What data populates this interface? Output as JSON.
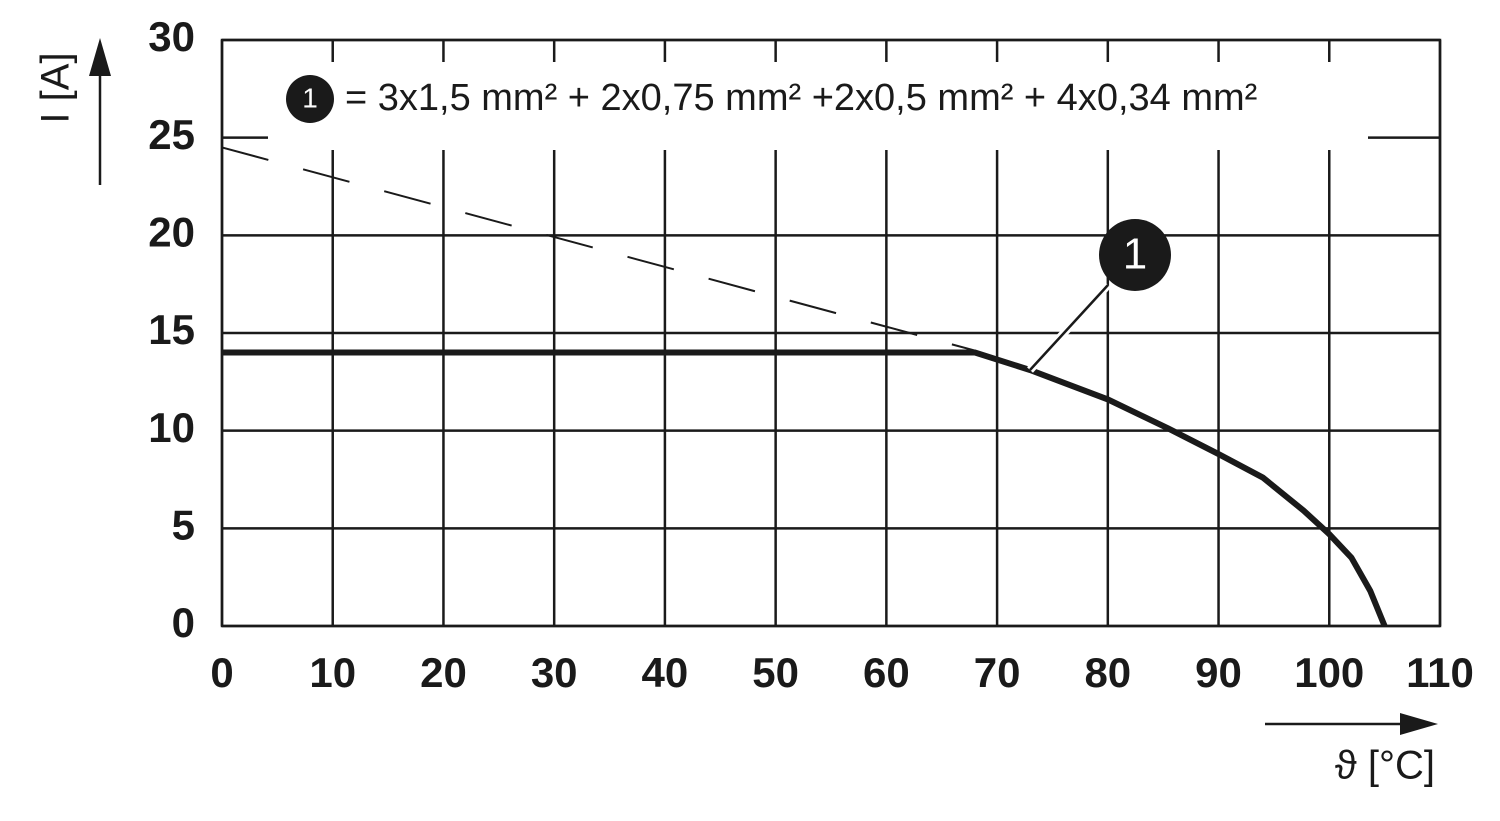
{
  "chart_data": {
    "type": "line",
    "xlabel": "ϑ [°C]",
    "ylabel": "I [A]",
    "xlim": [
      0,
      110
    ],
    "xticks": [
      0,
      10,
      20,
      30,
      40,
      50,
      60,
      70,
      80,
      90,
      100,
      110
    ],
    "ylim": [
      0,
      30
    ],
    "yticks": [
      0,
      5,
      10,
      15,
      20,
      25,
      30
    ],
    "grid": true,
    "series": [
      {
        "color": "#1a1a1a",
        "x": [
          0,
          68,
          73,
          80,
          85.5,
          90,
          94,
          97.7,
          100,
          102,
          103.7,
          105
        ],
        "values": [
          14,
          14,
          13.1,
          11.6,
          10.1,
          8.8,
          7.6,
          5.9,
          4.7,
          3.5,
          1.8,
          0
        ]
      },
      {
        "color": "#1a1a1a",
        "dashed": true,
        "x": [
          0,
          68
        ],
        "values": [
          24.5,
          14.1
        ]
      }
    ],
    "legend_note": {
      "marker": "1",
      "text": "= 3x1,5 mm² + 2x0,75 mm² +2x0,5 mm² + 4x0,34 mm²"
    },
    "callout": "1"
  }
}
